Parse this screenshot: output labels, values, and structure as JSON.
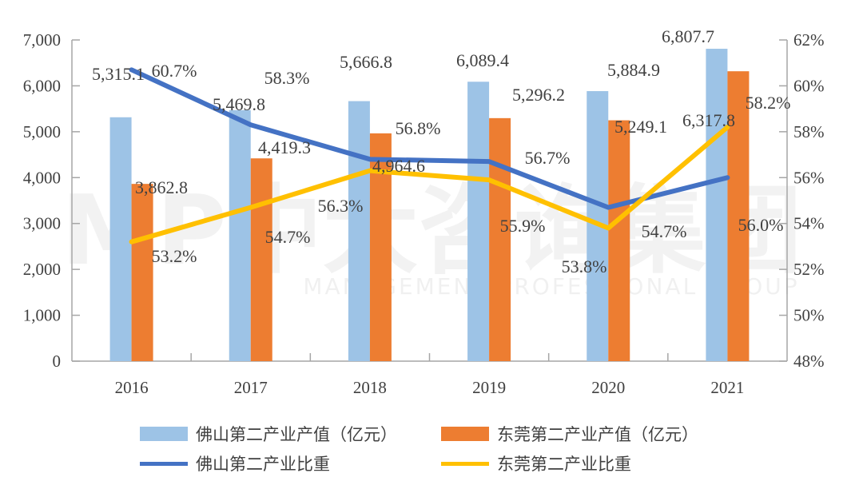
{
  "watermark": {
    "logo": "MP中大咨询集团",
    "tagline": "MANAGEMENT PROFESSIONAL GROUP"
  },
  "chart_data": {
    "type": "bar",
    "categories": [
      "2016",
      "2017",
      "2018",
      "2019",
      "2020",
      "2021"
    ],
    "left_axis": {
      "ylim": [
        0,
        7000
      ],
      "ticks": [
        "0",
        "1,000",
        "2,000",
        "3,000",
        "4,000",
        "5,000",
        "6,000",
        "7,000"
      ]
    },
    "right_axis": {
      "ylim": [
        48,
        62
      ],
      "ticks": [
        "48%",
        "50%",
        "52%",
        "54%",
        "56%",
        "58%",
        "60%",
        "62%"
      ]
    },
    "series": [
      {
        "name": "佛山第二产业产值（亿元）",
        "type": "bar",
        "axis": "left",
        "color": "#9DC3E6",
        "values": [
          5315.1,
          5469.8,
          5666.8,
          6089.4,
          5884.9,
          6807.7
        ],
        "labels": [
          "5,315.1",
          "5,469.8",
          "5,666.8",
          "6,089.4",
          "5,884.9",
          "6,807.7"
        ]
      },
      {
        "name": "东莞第二产业产值（亿元）",
        "type": "bar",
        "axis": "right_bar",
        "color": "#ED7D31",
        "values": [
          3862.8,
          4419.3,
          4964.6,
          5296.2,
          5249.1,
          6317.8
        ],
        "labels": [
          "3,862.8",
          "4,419.3",
          "4,964.6",
          "5,296.2",
          "5,249.1",
          "6,317.8"
        ]
      },
      {
        "name": "佛山第二产业比重",
        "type": "line",
        "axis": "right",
        "color": "#4472C4",
        "values": [
          60.7,
          58.3,
          56.8,
          56.7,
          54.7,
          56.0
        ],
        "labels": [
          "60.7%",
          "58.3%",
          "56.8%",
          "56.7%",
          "54.7%",
          "56.0%"
        ]
      },
      {
        "name": "东莞第二产业比重",
        "type": "line",
        "axis": "right",
        "color": "#FFC000",
        "values": [
          53.2,
          54.7,
          56.3,
          55.9,
          53.8,
          58.2
        ],
        "labels": [
          "53.2%",
          "54.7%",
          "56.3%",
          "55.9%",
          "53.8%",
          "58.2%"
        ]
      }
    ],
    "grid": false,
    "legend_placement": "bottom"
  }
}
